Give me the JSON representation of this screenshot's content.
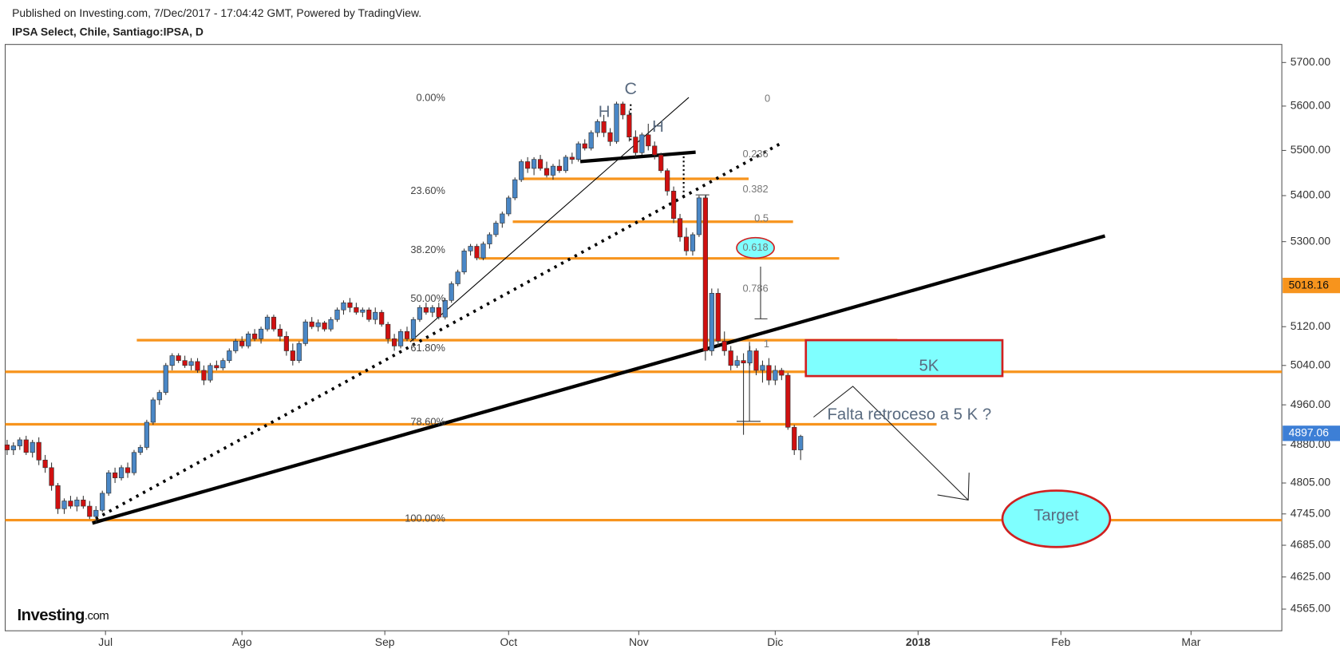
{
  "header": {
    "published": "Published on Investing.com, 7/Dec/2017 - 17:04:42 GMT, Powered by TradingView.",
    "symbol": "IPSA Select, Chile, Santiago:IPSA, D"
  },
  "logo": {
    "brand": "Investing",
    "suffix": ".com"
  },
  "chart_data": {
    "type": "candlestick",
    "log_scale": true,
    "up_color": "#4a87c6",
    "down_color": "#d01010",
    "level_color": "#f7941d",
    "xlim": [
      -0.3,
      200.8
    ],
    "xticks": [
      {
        "value": 15.5,
        "label": "Jul"
      },
      {
        "value": 37,
        "label": "Ago"
      },
      {
        "value": 59.5,
        "label": "Sep"
      },
      {
        "value": 79,
        "label": "Oct"
      },
      {
        "value": 99.5,
        "label": "Nov"
      },
      {
        "value": 121,
        "label": "Dic"
      },
      {
        "value": 143.5,
        "label": "2018"
      },
      {
        "value": 166,
        "label": "Feb"
      },
      {
        "value": 186.5,
        "label": "Mar"
      }
    ],
    "ylim": [
      4525,
      5742
    ],
    "yticks": [
      {
        "value": 5700,
        "label": "5700.00"
      },
      {
        "value": 5600,
        "label": "5600.00"
      },
      {
        "value": 5500,
        "label": "5500.00"
      },
      {
        "value": 5400,
        "label": "5400.00"
      },
      {
        "value": 5300,
        "label": "5300.00"
      },
      {
        "value": 5120,
        "label": "5120.00"
      },
      {
        "value": 5040,
        "label": "5040.00"
      },
      {
        "value": 4960,
        "label": "4960.00"
      },
      {
        "value": 4880,
        "label": "4880.00"
      },
      {
        "value": 4805,
        "label": "4805.00"
      },
      {
        "value": 4745,
        "label": "4745.00"
      },
      {
        "value": 4685,
        "label": "4685.00"
      },
      {
        "value": 4625,
        "label": "4625.00"
      },
      {
        "value": 4565,
        "label": "4565.00"
      }
    ],
    "price_labels": [
      5018.16,
      4897.06
    ],
    "levels": [
      5437,
      5343,
      5264,
      5092,
      5027,
      4921,
      4733
    ],
    "fib_left": [
      "0.00%",
      "23.60%",
      "38.20%",
      "50.00%",
      "61.80%",
      "78.60%",
      "100.00%"
    ],
    "fib_right": [
      "0",
      "0.236",
      "0.382",
      "0.5",
      "0.618",
      "0.786",
      "1"
    ],
    "annotations": [
      "H",
      "C",
      "H",
      "5K",
      "Target",
      "Falta retroceso a 5 K  ?"
    ],
    "candles": [
      [
        4880,
        4890,
        4860,
        4870
      ],
      [
        4870,
        4885,
        4860,
        4878
      ],
      [
        4878,
        4895,
        4870,
        4890
      ],
      [
        4890,
        4898,
        4860,
        4865
      ],
      [
        4865,
        4890,
        4855,
        4885
      ],
      [
        4885,
        4895,
        4840,
        4850
      ],
      [
        4850,
        4860,
        4825,
        4835
      ],
      [
        4835,
        4845,
        4790,
        4800
      ],
      [
        4800,
        4805,
        4745,
        4755
      ],
      [
        4755,
        4775,
        4745,
        4770
      ],
      [
        4770,
        4780,
        4755,
        4760
      ],
      [
        4760,
        4778,
        4750,
        4772
      ],
      [
        4772,
        4780,
        4755,
        4760
      ],
      [
        4760,
        4770,
        4735,
        4740
      ],
      [
        4740,
        4760,
        4728,
        4752
      ],
      [
        4752,
        4790,
        4748,
        4785
      ],
      [
        4785,
        4830,
        4780,
        4825
      ],
      [
        4825,
        4835,
        4805,
        4815
      ],
      [
        4815,
        4840,
        4810,
        4835
      ],
      [
        4835,
        4845,
        4815,
        4825
      ],
      [
        4825,
        4870,
        4820,
        4865
      ],
      [
        4865,
        4880,
        4860,
        4875
      ],
      [
        4875,
        4930,
        4870,
        4925
      ],
      [
        4925,
        4975,
        4920,
        4970
      ],
      [
        4970,
        4990,
        4960,
        4985
      ],
      [
        4985,
        5045,
        4980,
        5040
      ],
      [
        5040,
        5065,
        5030,
        5060
      ],
      [
        5060,
        5065,
        5045,
        5050
      ],
      [
        5050,
        5060,
        5035,
        5040
      ],
      [
        5040,
        5055,
        5030,
        5048
      ],
      [
        5048,
        5055,
        5025,
        5030
      ],
      [
        5030,
        5040,
        5000,
        5010
      ],
      [
        5010,
        5045,
        5005,
        5040
      ],
      [
        5040,
        5050,
        5030,
        5035
      ],
      [
        5035,
        5055,
        5030,
        5050
      ],
      [
        5050,
        5075,
        5045,
        5070
      ],
      [
        5070,
        5095,
        5065,
        5090
      ],
      [
        5090,
        5100,
        5075,
        5080
      ],
      [
        5080,
        5110,
        5075,
        5105
      ],
      [
        5105,
        5115,
        5090,
        5095
      ],
      [
        5095,
        5120,
        5085,
        5115
      ],
      [
        5115,
        5145,
        5110,
        5140
      ],
      [
        5140,
        5145,
        5110,
        5115
      ],
      [
        5115,
        5125,
        5090,
        5100
      ],
      [
        5100,
        5110,
        5060,
        5070
      ],
      [
        5070,
        5085,
        5040,
        5050
      ],
      [
        5050,
        5090,
        5045,
        5085
      ],
      [
        5085,
        5135,
        5080,
        5130
      ],
      [
        5130,
        5140,
        5115,
        5120
      ],
      [
        5120,
        5135,
        5110,
        5128
      ],
      [
        5128,
        5132,
        5110,
        5115
      ],
      [
        5115,
        5140,
        5110,
        5135
      ],
      [
        5135,
        5160,
        5130,
        5155
      ],
      [
        5155,
        5175,
        5145,
        5170
      ],
      [
        5170,
        5180,
        5150,
        5160
      ],
      [
        5160,
        5170,
        5145,
        5150
      ],
      [
        5150,
        5160,
        5140,
        5155
      ],
      [
        5155,
        5160,
        5130,
        5135
      ],
      [
        5135,
        5160,
        5125,
        5150
      ],
      [
        5150,
        5155,
        5120,
        5125
      ],
      [
        5125,
        5130,
        5085,
        5095
      ],
      [
        5095,
        5105,
        5070,
        5080
      ],
      [
        5080,
        5115,
        5075,
        5110
      ],
      [
        5110,
        5120,
        5090,
        5095
      ],
      [
        5095,
        5140,
        5090,
        5135
      ],
      [
        5135,
        5165,
        5130,
        5160
      ],
      [
        5160,
        5170,
        5145,
        5150
      ],
      [
        5150,
        5165,
        5140,
        5160
      ],
      [
        5160,
        5170,
        5135,
        5140
      ],
      [
        5140,
        5180,
        5135,
        5175
      ],
      [
        5175,
        5215,
        5170,
        5210
      ],
      [
        5210,
        5240,
        5205,
        5235
      ],
      [
        5235,
        5285,
        5230,
        5280
      ],
      [
        5280,
        5295,
        5270,
        5290
      ],
      [
        5290,
        5295,
        5260,
        5265
      ],
      [
        5265,
        5300,
        5260,
        5295
      ],
      [
        5295,
        5320,
        5285,
        5315
      ],
      [
        5315,
        5345,
        5310,
        5340
      ],
      [
        5340,
        5365,
        5330,
        5360
      ],
      [
        5360,
        5400,
        5355,
        5395
      ],
      [
        5395,
        5440,
        5390,
        5435
      ],
      [
        5435,
        5480,
        5430,
        5475
      ],
      [
        5475,
        5485,
        5450,
        5460
      ],
      [
        5460,
        5485,
        5445,
        5480
      ],
      [
        5480,
        5490,
        5455,
        5460
      ],
      [
        5460,
        5475,
        5440,
        5445
      ],
      [
        5445,
        5470,
        5435,
        5465
      ],
      [
        5465,
        5480,
        5450,
        5455
      ],
      [
        5455,
        5490,
        5450,
        5485
      ],
      [
        5485,
        5495,
        5470,
        5480
      ],
      [
        5480,
        5520,
        5475,
        5515
      ],
      [
        5515,
        5525,
        5500,
        5505
      ],
      [
        5505,
        5545,
        5500,
        5540
      ],
      [
        5540,
        5570,
        5530,
        5565
      ],
      [
        5565,
        5580,
        5530,
        5540
      ],
      [
        5540,
        5550,
        5510,
        5520
      ],
      [
        5520,
        5610,
        5515,
        5605
      ],
      [
        5605,
        5610,
        5570,
        5580
      ],
      [
        5580,
        5590,
        5520,
        5530
      ],
      [
        5530,
        5545,
        5485,
        5495
      ],
      [
        5495,
        5540,
        5490,
        5535
      ],
      [
        5535,
        5560,
        5500,
        5510
      ],
      [
        5510,
        5520,
        5480,
        5490
      ],
      [
        5490,
        5495,
        5450,
        5455
      ],
      [
        5455,
        5460,
        5400,
        5410
      ],
      [
        5410,
        5420,
        5340,
        5350
      ],
      [
        5350,
        5360,
        5300,
        5310
      ],
      [
        5310,
        5330,
        5270,
        5280
      ],
      [
        5280,
        5320,
        5270,
        5315
      ],
      [
        5315,
        5400,
        5310,
        5395
      ],
      [
        5395,
        5400,
        5050,
        5070
      ],
      [
        5070,
        5200,
        5060,
        5190
      ],
      [
        5190,
        5200,
        5080,
        5090
      ],
      [
        5090,
        5110,
        5060,
        5070
      ],
      [
        5070,
        5080,
        5030,
        5040
      ],
      [
        5040,
        5060,
        5035,
        5050
      ],
      [
        5050,
        5065,
        4900,
        5045
      ],
      [
        5045,
        5080,
        5040,
        5070
      ],
      [
        5070,
        5075,
        5020,
        5030
      ],
      [
        5030,
        5050,
        5005,
        5040
      ],
      [
        5040,
        5055,
        5000,
        5010
      ],
      [
        5010,
        5040,
        5000,
        5030
      ],
      [
        5030,
        5035,
        5010,
        5020
      ],
      [
        5020,
        5025,
        4910,
        4915
      ],
      [
        4915,
        4920,
        4860,
        4870
      ],
      [
        4870,
        4900,
        4850,
        4897
      ]
    ]
  }
}
